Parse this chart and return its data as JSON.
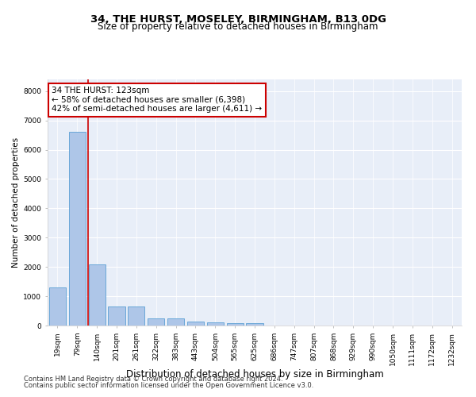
{
  "title": "34, THE HURST, MOSELEY, BIRMINGHAM, B13 0DG",
  "subtitle": "Size of property relative to detached houses in Birmingham",
  "xlabel": "Distribution of detached houses by size in Birmingham",
  "ylabel": "Number of detached properties",
  "footnote1": "Contains HM Land Registry data © Crown copyright and database right 2024.",
  "footnote2": "Contains public sector information licensed under the Open Government Licence v3.0.",
  "categories": [
    "19sqm",
    "79sqm",
    "140sqm",
    "201sqm",
    "261sqm",
    "322sqm",
    "383sqm",
    "443sqm",
    "504sqm",
    "565sqm",
    "625sqm",
    "686sqm",
    "747sqm",
    "807sqm",
    "868sqm",
    "929sqm",
    "990sqm",
    "1050sqm",
    "1111sqm",
    "1172sqm",
    "1232sqm"
  ],
  "values": [
    1310,
    6600,
    2090,
    655,
    645,
    255,
    250,
    125,
    120,
    80,
    80,
    0,
    0,
    0,
    0,
    0,
    0,
    0,
    0,
    0,
    0
  ],
  "bar_color": "#aec6e8",
  "bar_edge_color": "#5a9fd4",
  "background_color": "#e8eef8",
  "grid_color": "#ffffff",
  "vline_x": 1.55,
  "vline_color": "#cc0000",
  "annotation_line1": "34 THE HURST: 123sqm",
  "annotation_line2": "← 58% of detached houses are smaller (6,398)",
  "annotation_line3": "42% of semi-detached houses are larger (4,611) →",
  "annotation_box_color": "#cc0000",
  "ylim": [
    0,
    8400
  ],
  "yticks": [
    0,
    1000,
    2000,
    3000,
    4000,
    5000,
    6000,
    7000,
    8000
  ],
  "title_fontsize": 9.5,
  "subtitle_fontsize": 8.5,
  "xlabel_fontsize": 8.5,
  "ylabel_fontsize": 7.5,
  "tick_fontsize": 6.5,
  "annotation_fontsize": 7.5,
  "footnote_fontsize": 6.0
}
